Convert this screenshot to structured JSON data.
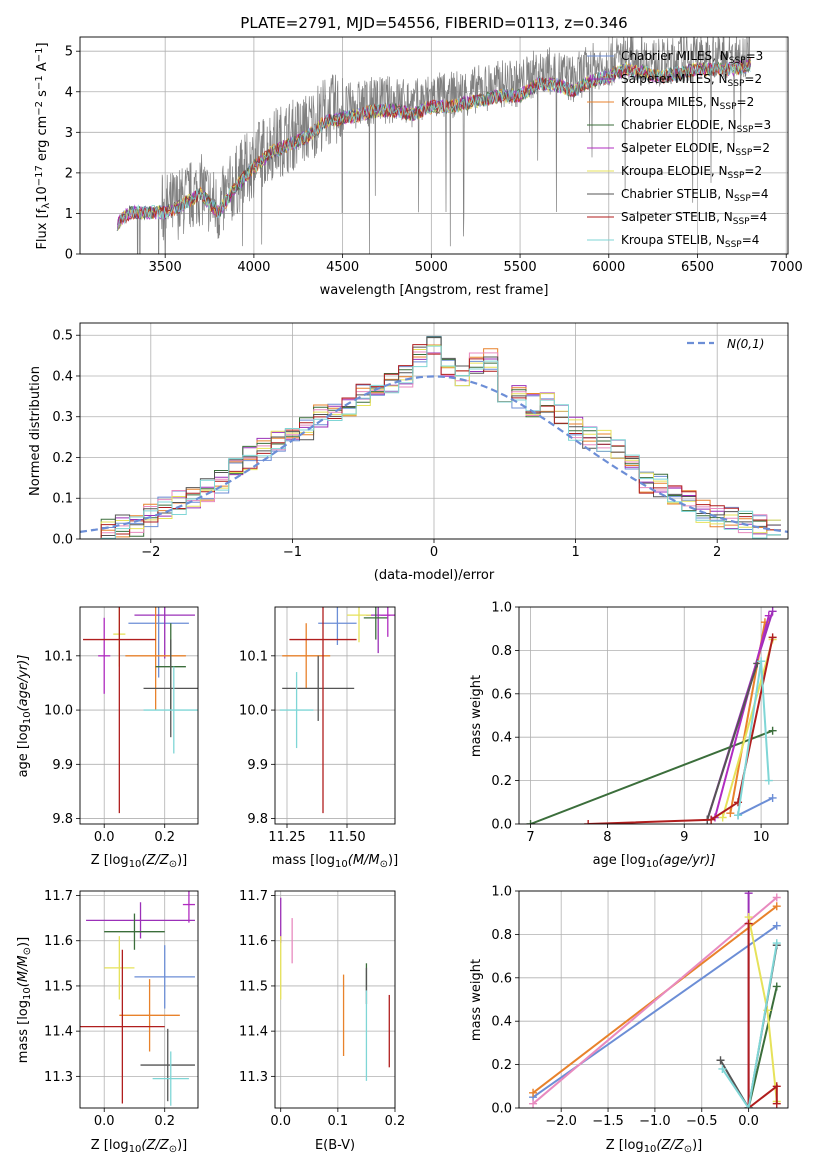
{
  "title": "PLATE=2791, MJD=54556, FIBERID=0113, z=0.346",
  "chart_data": [
    {
      "id": "spectrum",
      "type": "line",
      "xlabel": "wavelength [Angstrom, rest frame]",
      "ylabel_main": "Flux [f",
      "ylabel_sub": "λ",
      "ylabel_rest": "10",
      "ylabel_exp": "−17",
      "ylabel_units1": " erg cm",
      "ylabel_exp2": "−2",
      "ylabel_units2": " s",
      "ylabel_exp3": "−1",
      "ylabel_units3": " A",
      "ylabel_exp4": "−1",
      "ylabel_end": "]",
      "xlim": [
        3020,
        7010
      ],
      "ylim": [
        0,
        5.35
      ],
      "xticks": [
        3500,
        4000,
        4500,
        5000,
        5500,
        6000,
        6500,
        7000
      ],
      "yticks": [
        0,
        1,
        2,
        3,
        4,
        5
      ],
      "observed_envelope": {
        "x": [
          3230,
          3300,
          3400,
          3500,
          3600,
          3700,
          3800,
          3900,
          4000,
          4100,
          4200,
          4300,
          4400,
          4500,
          4600,
          4700,
          4800,
          4900,
          5000,
          5100,
          5200,
          5300,
          5400,
          5500,
          5600,
          5700,
          5800,
          5900,
          6000,
          6100,
          6200,
          6300,
          6400,
          6500,
          6600,
          6700,
          6800
        ],
        "y": [
          0.8,
          1.1,
          1.1,
          1.1,
          1.3,
          1.6,
          1.1,
          1.8,
          2.3,
          2.7,
          2.9,
          3.1,
          3.5,
          3.6,
          3.7,
          3.8,
          3.8,
          3.7,
          3.9,
          3.9,
          4.0,
          4.1,
          4.2,
          4.2,
          4.5,
          4.5,
          4.3,
          4.6,
          4.7,
          4.9,
          4.8,
          4.7,
          4.8,
          4.9,
          4.9,
          4.9,
          5.0
        ]
      },
      "series": [
        {
          "name": "Chabrier MILES, N",
          "sub": "SSP",
          "suffix": "=3",
          "color": "#6c8ed6"
        },
        {
          "name": "Salpeter MILES, N",
          "sub": "SSP",
          "suffix": "=2",
          "color": "#9b30b8"
        },
        {
          "name": "Kroupa MILES, N",
          "sub": "SSP",
          "suffix": "=2",
          "color": "#e8822b"
        },
        {
          "name": "Chabrier ELODIE, N",
          "sub": "SSP",
          "suffix": "=3",
          "color": "#3b6e3b"
        },
        {
          "name": "Salpeter ELODIE, N",
          "sub": "SSP",
          "suffix": "=2",
          "color": "#b02cc0"
        },
        {
          "name": "Kroupa ELODIE, N",
          "sub": "SSP",
          "suffix": "=2",
          "color": "#e6e25a"
        },
        {
          "name": "Chabrier STELIB, N",
          "sub": "SSP",
          "suffix": "=4",
          "color": "#555555"
        },
        {
          "name": "Salpeter STELIB, N",
          "sub": "SSP",
          "suffix": "=4",
          "color": "#b01e1e"
        },
        {
          "name": "Kroupa STELIB, N",
          "sub": "SSP",
          "suffix": "=4",
          "color": "#7fd6d6"
        }
      ]
    },
    {
      "id": "residuals",
      "type": "bar",
      "xlabel": "(data-model)/error",
      "ylabel": "Normed distribution",
      "xlim": [
        -2.5,
        2.5
      ],
      "ylim": [
        0,
        0.53
      ],
      "xticks": [
        -2,
        -1,
        0,
        1,
        2
      ],
      "yticks": [
        0.0,
        0.1,
        0.2,
        0.3,
        0.4,
        0.5
      ],
      "legend": "N(0,1)",
      "legend_color": "#6c8ed6",
      "histogram_centers": [
        -2.4,
        -2.3,
        -2.2,
        -2.1,
        -2.0,
        -1.9,
        -1.8,
        -1.7,
        -1.6,
        -1.5,
        -1.4,
        -1.3,
        -1.2,
        -1.1,
        -1.0,
        -0.9,
        -0.8,
        -0.7,
        -0.6,
        -0.5,
        -0.4,
        -0.3,
        -0.2,
        -0.1,
        0.0,
        0.1,
        0.2,
        0.3,
        0.4,
        0.5,
        0.6,
        0.7,
        0.8,
        0.9,
        1.0,
        1.1,
        1.2,
        1.3,
        1.4,
        1.5,
        1.6,
        1.7,
        1.8,
        1.9,
        2.0,
        2.1,
        2.2,
        2.3,
        2.4
      ],
      "histogram_values": [
        0.02,
        0.02,
        0.03,
        0.03,
        0.06,
        0.08,
        0.09,
        0.1,
        0.12,
        0.14,
        0.17,
        0.2,
        0.22,
        0.24,
        0.25,
        0.27,
        0.3,
        0.31,
        0.32,
        0.35,
        0.37,
        0.38,
        0.4,
        0.45,
        0.47,
        0.42,
        0.4,
        0.43,
        0.44,
        0.36,
        0.35,
        0.33,
        0.34,
        0.3,
        0.27,
        0.25,
        0.24,
        0.22,
        0.18,
        0.14,
        0.13,
        0.11,
        0.09,
        0.07,
        0.06,
        0.05,
        0.04,
        0.03,
        0.02
      ]
    },
    {
      "id": "age-vs-Z",
      "type": "scatter",
      "xlabel_main": "Z [log",
      "xlabel_sub": "10",
      "xlabel_rest": "(Z/Z",
      "xlabel_sub2": "⊙",
      "xlabel_end": ")]",
      "ylabel_main": "age  [log",
      "ylabel_sub": "10",
      "ylabel_rest": "(age/yr)]",
      "xlim": [
        -0.08,
        0.31
      ],
      "ylim": [
        9.79,
        10.19
      ],
      "xticks": [
        0.0,
        0.2
      ],
      "yticks": [
        9.8,
        9.9,
        10.0,
        10.1
      ],
      "points": [
        {
          "x": 0.18,
          "y": 10.16,
          "xerr": 0.1,
          "yerr": 0.1,
          "color": "#6c8ed6"
        },
        {
          "x": 0.2,
          "y": 10.175,
          "xerr": 0.1,
          "yerr": 0.08,
          "color": "#9b30b8"
        },
        {
          "x": 0.17,
          "y": 10.1,
          "xerr": 0.1,
          "yerr": 0.1,
          "color": "#e8822b"
        },
        {
          "x": 0.22,
          "y": 10.08,
          "xerr": 0.05,
          "yerr": 0.08,
          "color": "#3b6e3b"
        },
        {
          "x": 0.0,
          "y": 10.1,
          "xerr": 0.02,
          "yerr": 0.07,
          "color": "#b02cc0"
        },
        {
          "x": 0.05,
          "y": 10.14,
          "xerr": 0.02,
          "yerr": 0.06,
          "color": "#e6e25a"
        },
        {
          "x": 0.22,
          "y": 10.04,
          "xerr": 0.09,
          "yerr": 0.09,
          "color": "#555555"
        },
        {
          "x": 0.05,
          "y": 10.13,
          "xerr": 0.12,
          "yerr": 0.32,
          "color": "#b01e1e"
        },
        {
          "x": 0.23,
          "y": 10.0,
          "xerr": 0.1,
          "yerr": 0.08,
          "color": "#7fd6d6"
        }
      ]
    },
    {
      "id": "age-vs-mass",
      "type": "scatter",
      "xlabel_main": "mass [log",
      "xlabel_sub": "10",
      "xlabel_rest": "(M/M",
      "xlabel_sub2": "⊙",
      "xlabel_end": ")]",
      "xlim": [
        11.2,
        11.7
      ],
      "ylim": [
        9.79,
        10.19
      ],
      "xticks": [
        11.25,
        11.5
      ],
      "yticks": [
        9.8,
        9.9,
        10.0,
        10.1
      ],
      "points": [
        {
          "x": 11.46,
          "y": 10.16,
          "xerr": 0.08,
          "yerr": 0.04,
          "color": "#6c8ed6"
        },
        {
          "x": 11.63,
          "y": 10.175,
          "xerr": 0.05,
          "yerr": 0.07,
          "color": "#9b30b8"
        },
        {
          "x": 11.33,
          "y": 10.1,
          "xerr": 0.1,
          "yerr": 0.06,
          "color": "#e8822b"
        },
        {
          "x": 11.62,
          "y": 10.17,
          "xerr": 0.05,
          "yerr": 0.04,
          "color": "#3b6e3b"
        },
        {
          "x": 11.67,
          "y": 10.175,
          "xerr": 0.03,
          "yerr": 0.04,
          "color": "#b02cc0"
        },
        {
          "x": 11.55,
          "y": 10.175,
          "xerr": 0.05,
          "yerr": 0.05,
          "color": "#e6e25a"
        },
        {
          "x": 11.38,
          "y": 10.04,
          "xerr": 0.15,
          "yerr": 0.06,
          "color": "#555555"
        },
        {
          "x": 11.4,
          "y": 10.13,
          "xerr": 0.14,
          "yerr": 0.32,
          "color": "#b01e1e"
        },
        {
          "x": 11.29,
          "y": 10.0,
          "xerr": 0.07,
          "yerr": 0.07,
          "color": "#7fd6d6"
        }
      ]
    },
    {
      "id": "massweight-vs-age",
      "type": "line",
      "xlabel_main": "age  [log",
      "xlabel_sub": "10",
      "xlabel_rest": "(age/yr)]",
      "ylabel": "mass weight",
      "xlim": [
        6.85,
        10.35
      ],
      "ylim": [
        0.0,
        1.0
      ],
      "xticks": [
        7,
        8,
        9,
        10
      ],
      "yticks": [
        0.0,
        0.2,
        0.4,
        0.6,
        0.8,
        1.0
      ],
      "series": [
        {
          "color": "#6c8ed6",
          "x": [
            9.7,
            10.15
          ],
          "y": [
            0.04,
            0.12
          ]
        },
        {
          "color": "#9b30b8",
          "x": [
            9.3,
            10.15
          ],
          "y": [
            0.02,
            0.98
          ]
        },
        {
          "color": "#e8822b",
          "x": [
            9.6,
            10.05
          ],
          "y": [
            0.05,
            0.93
          ]
        },
        {
          "color": "#3b6e3b",
          "x": [
            7.0,
            10.15
          ],
          "y": [
            0.0,
            0.43
          ]
        },
        {
          "color": "#b02cc0",
          "x": [
            9.4,
            10.1
          ],
          "y": [
            0.03,
            0.96
          ]
        },
        {
          "color": "#e6e25a",
          "x": [
            9.5,
            10.15
          ],
          "y": [
            0.03,
            0.85
          ]
        },
        {
          "color": "#555555",
          "x": [
            9.3,
            9.95
          ],
          "y": [
            0.02,
            0.74
          ]
        },
        {
          "color": "#b01e1e",
          "x": [
            7.75,
            9.35,
            9.7,
            10.15
          ],
          "y": [
            0.0,
            0.02,
            0.1,
            0.86
          ]
        },
        {
          "color": "#7fd6d6",
          "x": [
            9.7,
            10.0,
            10.1
          ],
          "y": [
            0.04,
            0.75,
            0.2
          ]
        }
      ]
    },
    {
      "id": "mass-vs-Z",
      "type": "scatter",
      "xlabel_main": "Z [log",
      "xlabel_sub": "10",
      "xlabel_rest": "(Z/Z",
      "xlabel_sub2": "⊙",
      "xlabel_end": ")]",
      "ylabel_main": "mass [log",
      "ylabel_sub": "10",
      "ylabel_rest": "(M/M",
      "ylabel_sub2": "⊙",
      "ylabel_end": ")]",
      "xlim": [
        -0.08,
        0.31
      ],
      "ylim": [
        11.23,
        11.71
      ],
      "xticks": [
        0.0,
        0.2
      ],
      "yticks": [
        11.3,
        11.4,
        11.5,
        11.6,
        11.7
      ],
      "points": [
        {
          "x": 0.2,
          "y": 11.52,
          "xerr": 0.1,
          "yerr": 0.07,
          "color": "#6c8ed6"
        },
        {
          "x": 0.12,
          "y": 11.645,
          "xerr": 0.18,
          "yerr": 0.04,
          "color": "#9b30b8"
        },
        {
          "x": 0.15,
          "y": 11.435,
          "xerr": 0.1,
          "yerr": 0.08,
          "color": "#e8822b"
        },
        {
          "x": 0.1,
          "y": 11.62,
          "xerr": 0.1,
          "yerr": 0.04,
          "color": "#3b6e3b"
        },
        {
          "x": 0.28,
          "y": 11.68,
          "xerr": 0.02,
          "yerr": 0.04,
          "color": "#b02cc0"
        },
        {
          "x": 0.05,
          "y": 11.54,
          "xerr": 0.05,
          "yerr": 0.07,
          "color": "#e6e25a"
        },
        {
          "x": 0.21,
          "y": 11.325,
          "xerr": 0.09,
          "yerr": 0.08,
          "color": "#555555"
        },
        {
          "x": 0.06,
          "y": 11.41,
          "xerr": 0.14,
          "yerr": 0.17,
          "color": "#b01e1e"
        },
        {
          "x": 0.22,
          "y": 11.295,
          "xerr": 0.06,
          "yerr": 0.06,
          "color": "#7fd6d6"
        }
      ]
    },
    {
      "id": "mass-vs-EBV",
      "type": "scatter",
      "xlabel": "E(B-V)",
      "xlim": [
        -0.01,
        0.2
      ],
      "ylim": [
        11.23,
        11.71
      ],
      "xticks": [
        0.0,
        0.1,
        0.2
      ],
      "yticks": [
        11.3,
        11.4,
        11.5,
        11.6,
        11.7
      ],
      "points": [
        {
          "x": 0.11,
          "y": 11.52,
          "yerr": 0.0,
          "color": "#6c8ed6"
        },
        {
          "x": 0.0,
          "y": 11.645,
          "yerr": 0.05,
          "color": "#9b30b8"
        },
        {
          "x": 0.11,
          "y": 11.435,
          "yerr": 0.09,
          "color": "#e8822b"
        },
        {
          "x": 0.15,
          "y": 11.52,
          "yerr": 0.03,
          "color": "#3b6e3b"
        },
        {
          "x": 0.02,
          "y": 11.6,
          "yerr": 0.05,
          "color": "#e88abf"
        },
        {
          "x": 0.0,
          "y": 11.54,
          "yerr": 0.07,
          "color": "#e6e25a"
        },
        {
          "x": 0.15,
          "y": 11.5,
          "yerr": 0.04,
          "color": "#555555"
        },
        {
          "x": 0.19,
          "y": 11.4,
          "yerr": 0.08,
          "color": "#b01e1e"
        },
        {
          "x": 0.15,
          "y": 11.39,
          "yerr": 0.1,
          "color": "#7fd6d6"
        }
      ]
    },
    {
      "id": "massweight-vs-Z",
      "type": "line",
      "xlabel_main": "Z [log",
      "xlabel_sub": "10",
      "xlabel_rest": "(Z/Z",
      "xlabel_sub2": "⊙",
      "xlabel_end": ")]",
      "ylabel": "mass weight",
      "xlim": [
        -2.45,
        0.42
      ],
      "ylim": [
        0.0,
        1.0
      ],
      "xticks": [
        -2.0,
        -1.5,
        -1.0,
        -0.5,
        0.0
      ],
      "xtick_labels": [
        "−2.0",
        "−1.5",
        "−1.0",
        "−0.5",
        "0.0"
      ],
      "yticks": [
        0.0,
        0.2,
        0.4,
        0.6,
        0.8,
        1.0
      ],
      "series": [
        {
          "color": "#6c8ed6",
          "x": [
            -2.3,
            0.3
          ],
          "y": [
            0.05,
            0.84
          ]
        },
        {
          "color": "#9b30b8",
          "x": [
            0.0,
            0.0
          ],
          "y": [
            0.0,
            0.99
          ]
        },
        {
          "color": "#e8822b",
          "x": [
            -2.3,
            0.3
          ],
          "y": [
            0.07,
            0.93
          ]
        },
        {
          "color": "#3b6e3b",
          "x": [
            0.0,
            0.3
          ],
          "y": [
            0.0,
            0.56
          ]
        },
        {
          "color": "#e88abf",
          "x": [
            -2.3,
            0.3
          ],
          "y": [
            0.02,
            0.97
          ]
        },
        {
          "color": "#e6e25a",
          "x": [
            0.0,
            0.2,
            0.3
          ],
          "y": [
            0.88,
            0.45,
            0.03
          ]
        },
        {
          "color": "#555555",
          "x": [
            -0.3,
            0.0,
            0.3
          ],
          "y": [
            0.22,
            0.0,
            0.75
          ]
        },
        {
          "color": "#b01e1e",
          "x": [
            0.0,
            0.0,
            0.3,
            0.3
          ],
          "y": [
            0.85,
            0.0,
            0.1,
            0.02
          ]
        },
        {
          "color": "#7fd6d6",
          "x": [
            -0.28,
            0.0,
            0.3
          ],
          "y": [
            0.18,
            0.0,
            0.76
          ]
        }
      ]
    }
  ]
}
